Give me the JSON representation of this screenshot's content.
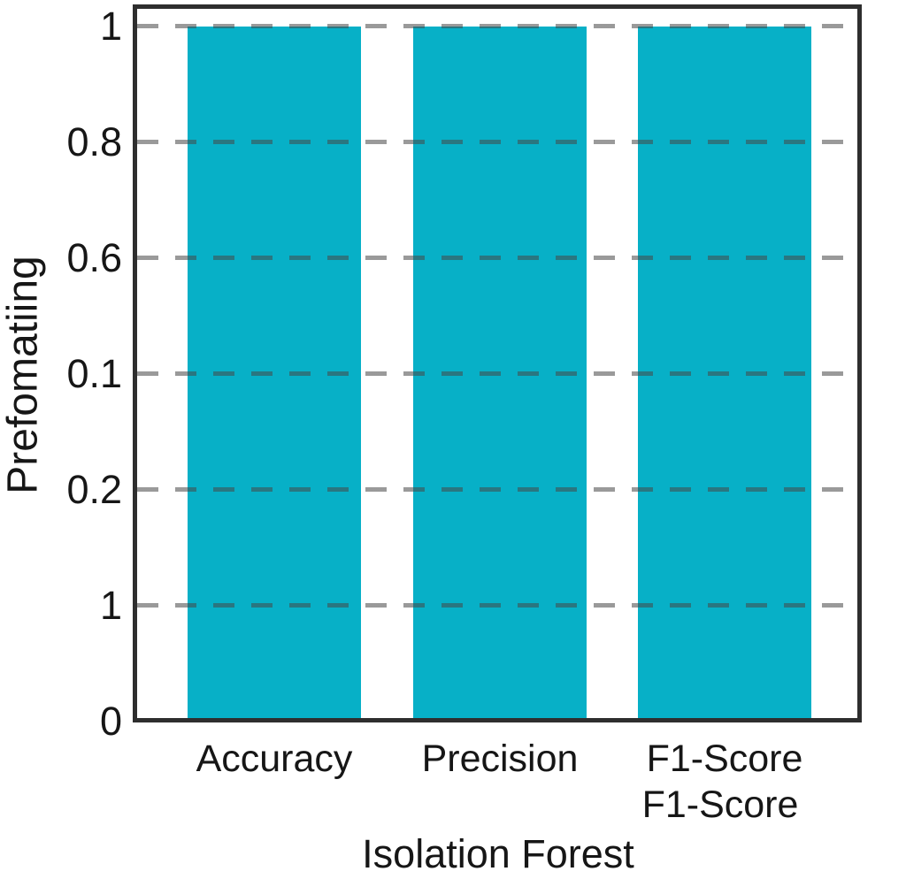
{
  "chart_data": {
    "type": "bar",
    "title": "",
    "xlabel": "Isolation Forest",
    "ylabel": "Prefomatiing",
    "categories": [
      "Accuracy",
      "Precision",
      "F1-Score"
    ],
    "category_secondary_lines": [
      "",
      "",
      "F1-Score"
    ],
    "values": [
      1.0,
      1.0,
      1.0
    ],
    "y_tick_labels_top_to_bottom": [
      "1",
      "0.8",
      "0.6",
      "0.1",
      "0.2",
      "1",
      "0"
    ],
    "ylim": [
      0,
      1.07
    ],
    "grid": "horizontal dashed gridlines",
    "legend": "none",
    "colors": {
      "bar": "#07b0c7",
      "grid": "#8c8c8c",
      "frame": "#2e2e2e",
      "text": "#161616",
      "background": "#ffffff"
    }
  }
}
